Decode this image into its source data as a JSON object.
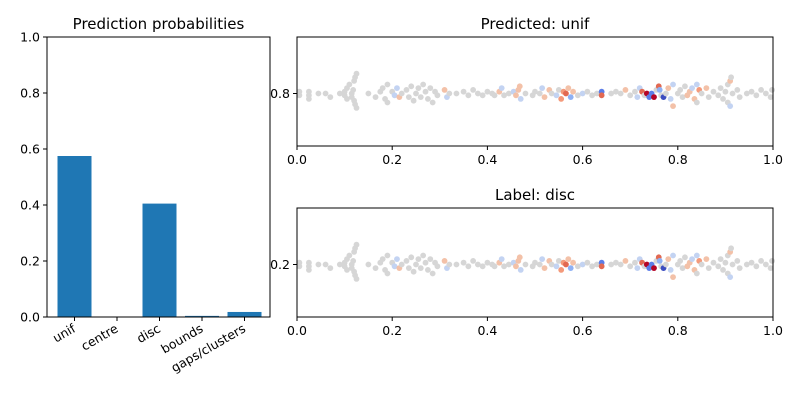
{
  "chart_data": [
    {
      "type": "bar",
      "title": "Prediction probabilities",
      "categories": [
        "unif",
        "centre",
        "disc",
        "bounds",
        "gaps/clusters"
      ],
      "values": [
        0.575,
        0.0,
        0.405,
        0.004,
        0.018
      ],
      "ylim": [
        0,
        1.0
      ],
      "yticks": [
        "0.0",
        "0.2",
        "0.4",
        "0.6",
        "0.8",
        "1.0"
      ],
      "bar_color": "#1f77b4"
    },
    {
      "type": "scatter",
      "title": "Predicted: unif",
      "xlim": [
        0,
        1.0
      ],
      "xticks": [
        "0.0",
        "0.2",
        "0.4",
        "0.6",
        "0.8",
        "1.0"
      ],
      "yticks": [
        "0.8"
      ],
      "colormap": "coolwarm"
    },
    {
      "type": "scatter",
      "title": "Label: disc",
      "xlim": [
        0,
        1.0
      ],
      "xticks": [
        "0.0",
        "0.2",
        "0.4",
        "0.6",
        "0.8",
        "1.0"
      ],
      "yticks": [
        "0.2"
      ],
      "colormap": "coolwarm"
    }
  ],
  "swarm_points": [
    [
      0.005,
      0.01,
      "grey"
    ],
    [
      0.005,
      -0.01,
      "grey"
    ],
    [
      0.025,
      0.01,
      "grey"
    ],
    [
      0.025,
      -0.01,
      "grey"
    ],
    [
      0.025,
      -0.03,
      "grey"
    ],
    [
      0.045,
      0.0,
      "grey"
    ],
    [
      0.06,
      0.0,
      "grey"
    ],
    [
      0.07,
      -0.02,
      "grey"
    ],
    [
      0.09,
      0.0,
      "grey"
    ],
    [
      0.1,
      0.01,
      "grey"
    ],
    [
      0.1,
      -0.01,
      "grey"
    ],
    [
      0.105,
      0.03,
      "grey"
    ],
    [
      0.105,
      -0.03,
      "grey"
    ],
    [
      0.11,
      0.05,
      "grey"
    ],
    [
      0.115,
      0.0,
      "grey"
    ],
    [
      0.115,
      -0.02,
      "grey"
    ],
    [
      0.118,
      0.02,
      "grey"
    ],
    [
      0.12,
      0.07,
      "grey"
    ],
    [
      0.12,
      -0.04,
      "grey"
    ],
    [
      0.122,
      0.09,
      "grey"
    ],
    [
      0.122,
      -0.06,
      "grey"
    ],
    [
      0.125,
      0.11,
      "grey"
    ],
    [
      0.125,
      -0.08,
      "grey"
    ],
    [
      0.15,
      0.0,
      "grey"
    ],
    [
      0.165,
      -0.02,
      "grey"
    ],
    [
      0.175,
      0.01,
      "grey"
    ],
    [
      0.18,
      0.03,
      "grey"
    ],
    [
      0.185,
      -0.03,
      "grey"
    ],
    [
      0.19,
      0.05,
      "grey"
    ],
    [
      0.19,
      -0.05,
      "grey"
    ],
    [
      0.2,
      0.01,
      "grey"
    ],
    [
      0.205,
      -0.01,
      "lblue"
    ],
    [
      0.21,
      0.03,
      "lblue"
    ],
    [
      0.215,
      -0.02,
      "lred"
    ],
    [
      0.22,
      0.0,
      "grey"
    ],
    [
      0.23,
      0.02,
      "grey"
    ],
    [
      0.235,
      -0.02,
      "grey"
    ],
    [
      0.24,
      0.04,
      "grey"
    ],
    [
      0.245,
      -0.04,
      "grey"
    ],
    [
      0.25,
      0.0,
      "grey"
    ],
    [
      0.255,
      0.03,
      "grey"
    ],
    [
      0.26,
      -0.02,
      "grey"
    ],
    [
      0.265,
      0.05,
      "grey"
    ],
    [
      0.27,
      0.01,
      "grey"
    ],
    [
      0.275,
      -0.03,
      "grey"
    ],
    [
      0.28,
      0.03,
      "grey"
    ],
    [
      0.285,
      -0.05,
      "grey"
    ],
    [
      0.29,
      0.01,
      "grey"
    ],
    [
      0.295,
      -0.01,
      "grey"
    ],
    [
      0.31,
      0.02,
      "lred"
    ],
    [
      0.315,
      -0.02,
      "lblue"
    ],
    [
      0.32,
      0.0,
      "grey"
    ],
    [
      0.335,
      0.0,
      "grey"
    ],
    [
      0.35,
      0.01,
      "grey"
    ],
    [
      0.36,
      -0.01,
      "grey"
    ],
    [
      0.37,
      0.02,
      "grey"
    ],
    [
      0.38,
      0.0,
      "grey"
    ],
    [
      0.39,
      -0.01,
      "grey"
    ],
    [
      0.4,
      0.01,
      "grey"
    ],
    [
      0.41,
      0.0,
      "grey"
    ],
    [
      0.415,
      -0.01,
      "grey"
    ],
    [
      0.425,
      0.01,
      "lred"
    ],
    [
      0.43,
      0.03,
      "lblue"
    ],
    [
      0.435,
      -0.01,
      "grey"
    ],
    [
      0.445,
      0.0,
      "grey"
    ],
    [
      0.455,
      0.01,
      "lblue"
    ],
    [
      0.46,
      -0.01,
      "lred"
    ],
    [
      0.465,
      0.02,
      "lred"
    ],
    [
      0.468,
      0.04,
      "lred"
    ],
    [
      0.47,
      -0.03,
      "lblue"
    ],
    [
      0.48,
      0.0,
      "grey"
    ],
    [
      0.495,
      -0.01,
      "grey"
    ],
    [
      0.5,
      0.01,
      "grey"
    ],
    [
      0.51,
      0.0,
      "grey"
    ],
    [
      0.515,
      0.03,
      "lblue"
    ],
    [
      0.52,
      -0.02,
      "lred"
    ],
    [
      0.53,
      0.02,
      "lred"
    ],
    [
      0.535,
      0.0,
      "grey"
    ],
    [
      0.545,
      -0.01,
      "lblue"
    ],
    [
      0.55,
      0.02,
      "grey"
    ],
    [
      0.555,
      -0.03,
      "mred"
    ],
    [
      0.56,
      0.01,
      "mred"
    ],
    [
      0.565,
      0.0,
      "red"
    ],
    [
      0.57,
      0.03,
      "lred"
    ],
    [
      0.575,
      -0.02,
      "mblue"
    ],
    [
      0.58,
      0.01,
      "lred"
    ],
    [
      0.59,
      -0.01,
      "grey"
    ],
    [
      0.6,
      0.0,
      "lblue"
    ],
    [
      0.61,
      0.01,
      "grey"
    ],
    [
      0.62,
      -0.01,
      "grey"
    ],
    [
      0.63,
      0.0,
      "grey"
    ],
    [
      0.64,
      0.01,
      "blue"
    ],
    [
      0.64,
      -0.01,
      "red"
    ],
    [
      0.66,
      0.0,
      "grey"
    ],
    [
      0.67,
      0.01,
      "grey"
    ],
    [
      0.68,
      0.0,
      "grey"
    ],
    [
      0.69,
      0.02,
      "lred"
    ],
    [
      0.7,
      -0.01,
      "grey"
    ],
    [
      0.71,
      0.01,
      "grey"
    ],
    [
      0.715,
      -0.02,
      "lblue"
    ],
    [
      0.72,
      0.03,
      "lblue"
    ],
    [
      0.725,
      0.01,
      "red"
    ],
    [
      0.73,
      -0.01,
      "grey"
    ],
    [
      0.735,
      0.0,
      "dred"
    ],
    [
      0.74,
      -0.02,
      "blue"
    ],
    [
      0.745,
      0.0,
      "blue"
    ],
    [
      0.75,
      -0.02,
      "dred"
    ],
    [
      0.755,
      0.02,
      "grey"
    ],
    [
      0.76,
      0.04,
      "red"
    ],
    [
      0.762,
      0.02,
      "mblue"
    ],
    [
      0.765,
      -0.01,
      "grey"
    ],
    [
      0.77,
      -0.02,
      "dblue"
    ],
    [
      0.775,
      0.0,
      "grey"
    ],
    [
      0.78,
      0.03,
      "lred"
    ],
    [
      0.785,
      -0.03,
      "lblue"
    ],
    [
      0.79,
      0.05,
      "lblue"
    ],
    [
      0.79,
      -0.07,
      "lred"
    ],
    [
      0.8,
      0.0,
      "grey"
    ],
    [
      0.805,
      0.02,
      "grey"
    ],
    [
      0.81,
      -0.02,
      "grey"
    ],
    [
      0.815,
      0.04,
      "grey"
    ],
    [
      0.82,
      -0.01,
      "lred"
    ],
    [
      0.825,
      0.01,
      "lred"
    ],
    [
      0.83,
      0.03,
      "lblue"
    ],
    [
      0.835,
      -0.03,
      "lred"
    ],
    [
      0.84,
      0.05,
      "lblue"
    ],
    [
      0.84,
      -0.05,
      "grey"
    ],
    [
      0.845,
      0.02,
      "mred"
    ],
    [
      0.85,
      0.0,
      "grey"
    ],
    [
      0.86,
      0.03,
      "lred"
    ],
    [
      0.865,
      -0.02,
      "grey"
    ],
    [
      0.875,
      0.01,
      "grey"
    ],
    [
      0.885,
      -0.01,
      "grey"
    ],
    [
      0.89,
      0.03,
      "grey"
    ],
    [
      0.895,
      -0.03,
      "grey"
    ],
    [
      0.9,
      0.01,
      "grey"
    ],
    [
      0.905,
      0.05,
      "grey"
    ],
    [
      0.905,
      -0.05,
      "grey"
    ],
    [
      0.91,
      0.07,
      "lred"
    ],
    [
      0.91,
      -0.07,
      "lblue"
    ],
    [
      0.912,
      0.09,
      "grey"
    ],
    [
      0.915,
      0.0,
      "grey"
    ],
    [
      0.925,
      0.02,
      "grey"
    ],
    [
      0.93,
      -0.02,
      "grey"
    ],
    [
      0.945,
      0.0,
      "grey"
    ],
    [
      0.955,
      0.01,
      "grey"
    ],
    [
      0.965,
      -0.01,
      "grey"
    ],
    [
      0.975,
      0.02,
      "grey"
    ],
    [
      0.985,
      0.0,
      "grey"
    ],
    [
      0.995,
      -0.02,
      "grey"
    ],
    [
      0.998,
      0.02,
      "grey"
    ]
  ],
  "palette": {
    "grey": "#d6d6d6",
    "lblue": "#c3d3f2",
    "mblue": "#8fb1f4",
    "blue": "#5c7de8",
    "dblue": "#3b4cc0",
    "lred": "#f3c1a8",
    "mred": "#f49a7b",
    "red": "#e26952",
    "dred": "#b40426"
  }
}
